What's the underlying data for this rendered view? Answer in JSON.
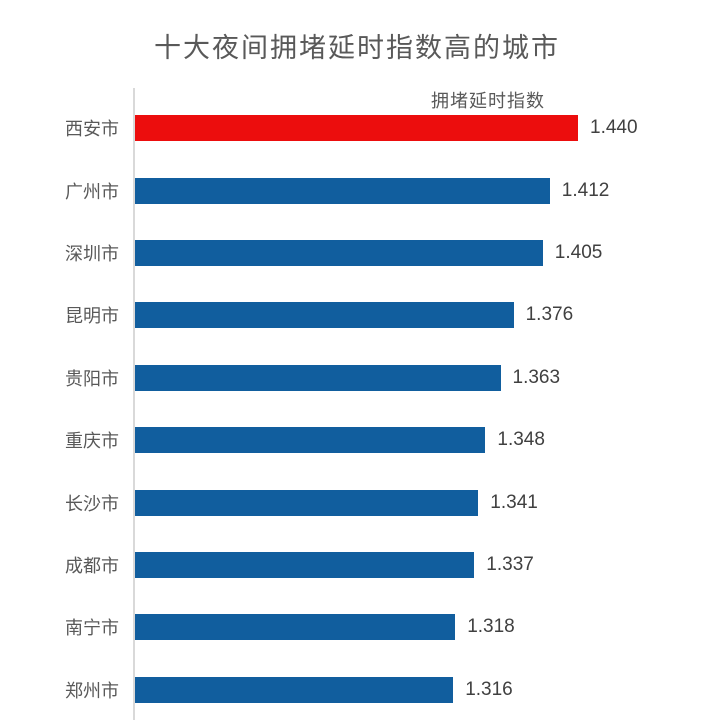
{
  "title": "十大夜间拥堵延时指数高的城市",
  "chart_data": {
    "type": "bar",
    "orientation": "horizontal",
    "title": "十大夜间拥堵延时指数高的城市",
    "series_label": "拥堵延时指数",
    "categories": [
      "西安市",
      "广州市",
      "深圳市",
      "昆明市",
      "贵阳市",
      "重庆市",
      "长沙市",
      "成都市",
      "南宁市",
      "郑州市"
    ],
    "values": [
      1.44,
      1.412,
      1.405,
      1.376,
      1.363,
      1.348,
      1.341,
      1.337,
      1.318,
      1.316
    ],
    "value_labels": [
      "1.440",
      "1.412",
      "1.405",
      "1.376",
      "1.363",
      "1.348",
      "1.341",
      "1.337",
      "1.318",
      "1.316"
    ],
    "xlim": [
      1.0,
      1.44
    ],
    "xlabel": "",
    "ylabel": "",
    "grid": false,
    "highlight_index": 0,
    "legend_position": "above-first-bar-right",
    "sort_order": "descending"
  },
  "colors": {
    "bar": "#115e9e",
    "highlight": "#ec0d0d",
    "title_text": "#595959",
    "category_text": "#595959",
    "value_text": "#404040",
    "legend_text": "#595959",
    "axis_line": "#d9d9d9",
    "background": "#ffffff"
  }
}
